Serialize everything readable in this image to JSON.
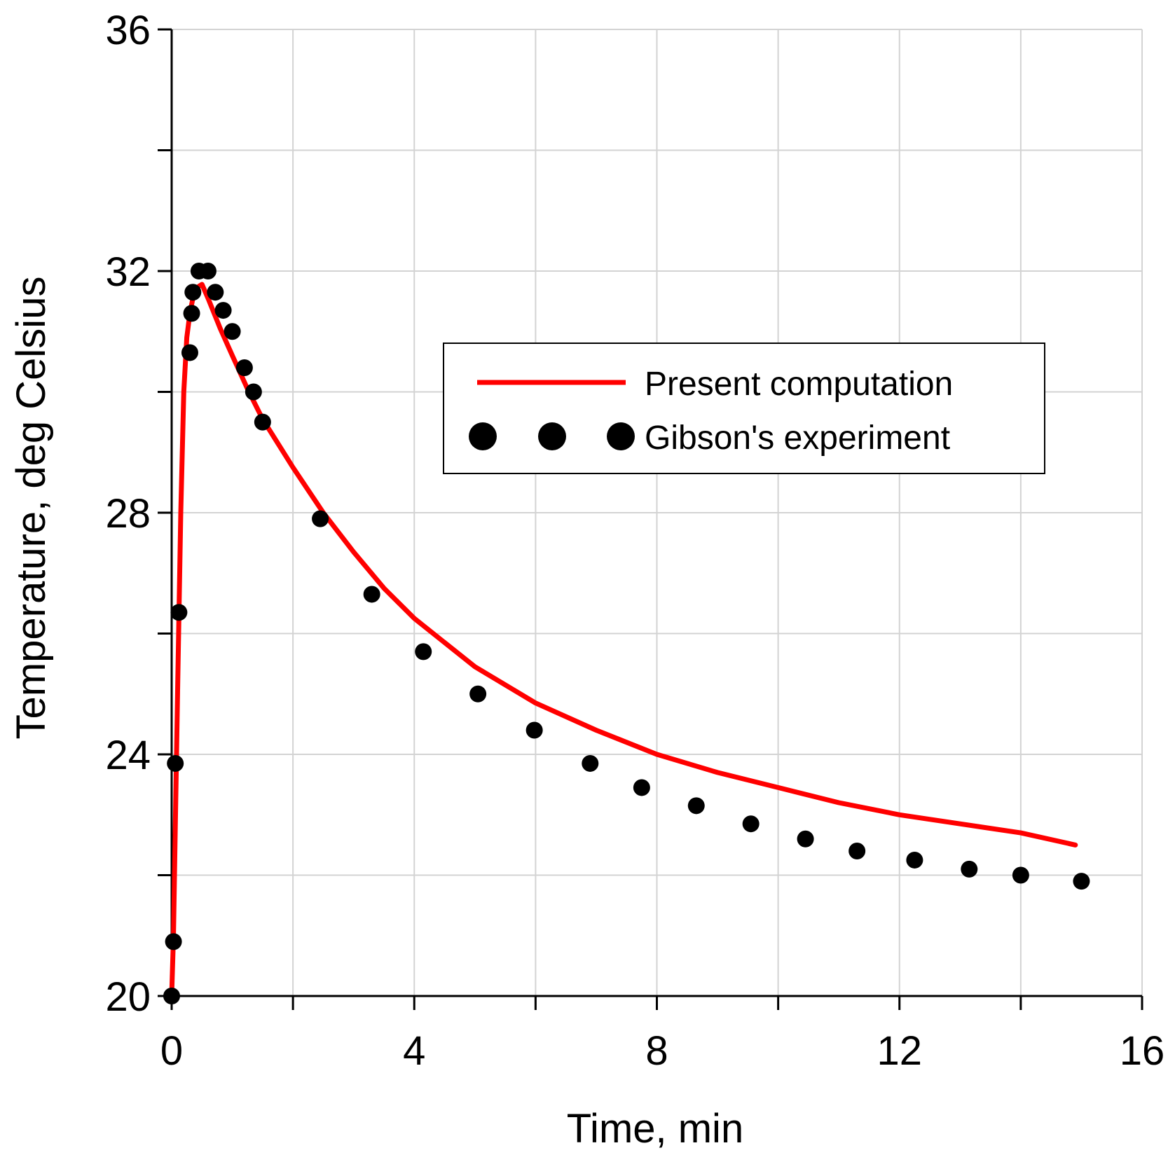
{
  "chart_data": {
    "type": "line+scatter",
    "xlabel": "Time, min",
    "ylabel": "Temperature, deg Celsius",
    "xlim": [
      0,
      16
    ],
    "ylim": [
      20,
      36
    ],
    "grid": true,
    "x_major_ticks": [
      0,
      4,
      8,
      12,
      16
    ],
    "x_minor_ticks": [
      2,
      6,
      10,
      14
    ],
    "x_tick_labels": [
      "0",
      "4",
      "8",
      "12",
      "16"
    ],
    "y_major_ticks": [
      20,
      24,
      28,
      32,
      36
    ],
    "y_minor_ticks": [
      22,
      26,
      30,
      34
    ],
    "y_tick_labels": [
      "20",
      "24",
      "28",
      "32",
      "36"
    ],
    "legend_position": "upper-right",
    "series": [
      {
        "name": "Present computation",
        "kind": "line",
        "color": "#ff0000",
        "x": [
          0,
          0.03,
          0.06,
          0.1,
          0.15,
          0.2,
          0.25,
          0.3,
          0.35,
          0.4,
          0.45,
          0.5,
          0.6,
          0.8,
          1.0,
          1.25,
          1.5,
          2.0,
          2.5,
          3.0,
          3.5,
          4.0,
          5.0,
          6.0,
          7.0,
          8.0,
          9.0,
          10.0,
          11.0,
          12.0,
          13.0,
          14.0,
          14.9
        ],
        "values": [
          20.0,
          21.0,
          22.8,
          25.2,
          28.0,
          30.0,
          30.9,
          31.3,
          31.55,
          31.7,
          31.75,
          31.78,
          31.55,
          31.05,
          30.6,
          30.05,
          29.55,
          28.75,
          28.0,
          27.35,
          26.75,
          26.25,
          25.45,
          24.85,
          24.4,
          24.0,
          23.7,
          23.45,
          23.2,
          23.0,
          22.85,
          22.7,
          22.5
        ]
      },
      {
        "name": "Gibson's experiment",
        "kind": "scatter",
        "color": "#000000",
        "x": [
          0,
          0.03,
          0.06,
          0.12,
          0.3,
          0.33,
          0.35,
          0.45,
          0.6,
          0.72,
          0.85,
          1.0,
          1.2,
          1.35,
          1.5,
          2.45,
          3.3,
          4.15,
          5.05,
          5.98,
          6.9,
          7.75,
          8.65,
          9.55,
          10.45,
          11.3,
          12.25,
          13.15,
          14.0,
          15.0
        ],
        "values": [
          20.0,
          20.9,
          23.85,
          26.35,
          30.65,
          31.3,
          31.65,
          32.0,
          32.0,
          31.65,
          31.35,
          31.0,
          30.4,
          30.0,
          29.5,
          27.9,
          26.65,
          25.7,
          25.0,
          24.4,
          23.85,
          23.45,
          23.15,
          22.85,
          22.6,
          22.4,
          22.25,
          22.1,
          22.0,
          21.9
        ]
      }
    ]
  }
}
